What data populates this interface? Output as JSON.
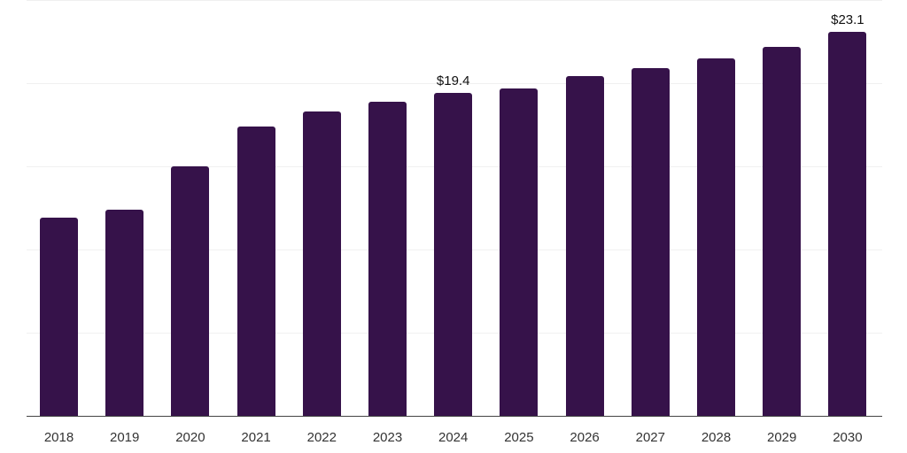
{
  "chart_data": {
    "type": "bar",
    "title": "",
    "xlabel": "",
    "ylabel": "",
    "categories": [
      "2018",
      "2019",
      "2020",
      "2021",
      "2022",
      "2023",
      "2024",
      "2025",
      "2026",
      "2027",
      "2028",
      "2029",
      "2030"
    ],
    "values": [
      11.9,
      12.4,
      15.0,
      17.4,
      18.3,
      18.9,
      19.4,
      19.7,
      20.4,
      20.9,
      21.5,
      22.2,
      23.1
    ],
    "data_labels": [
      {
        "category": "2024",
        "text": "$19.4"
      },
      {
        "category": "2030",
        "text": "$23.1"
      }
    ],
    "ylim": [
      0,
      25
    ],
    "gridlines": [
      5,
      10,
      15,
      20,
      25
    ],
    "grid": true,
    "y_tick_labels_visible": false,
    "legend": null,
    "bar_color": "#36124a"
  }
}
